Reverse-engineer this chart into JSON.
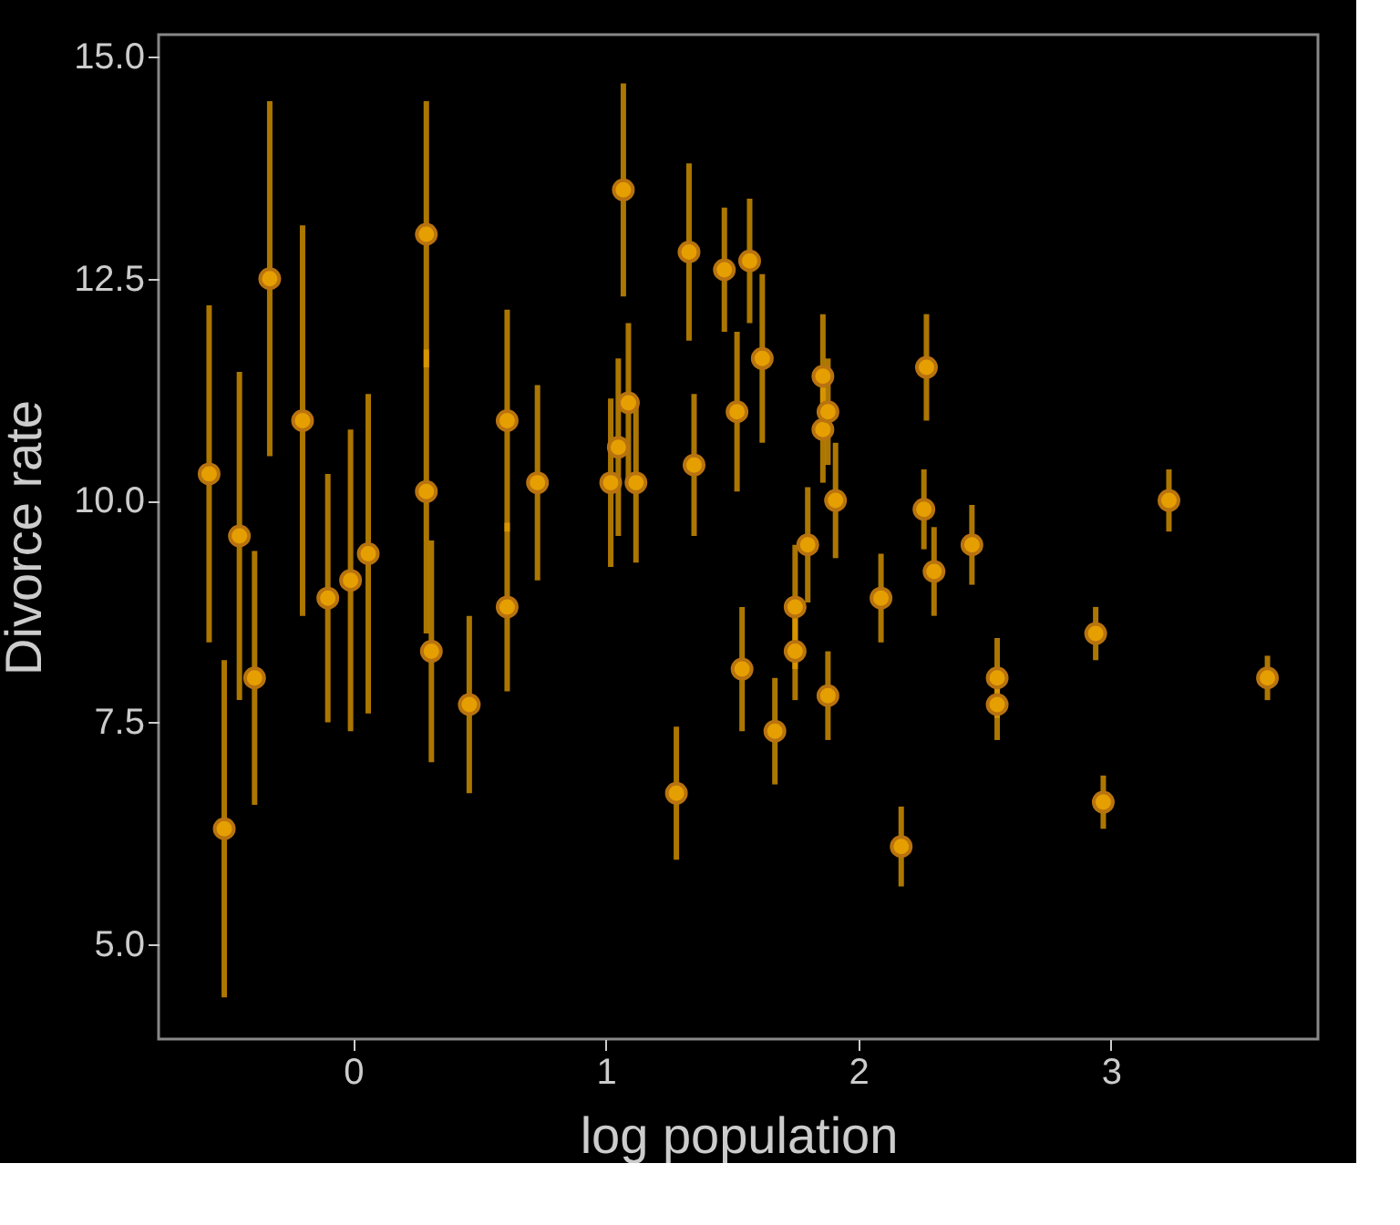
{
  "chart_data": {
    "type": "scatter",
    "xlabel": "log population",
    "ylabel": "Divorce rate",
    "x": [
      -0.57,
      -0.51,
      -0.45,
      -0.39,
      -0.33,
      -0.2,
      -0.1,
      -0.01,
      0.06,
      0.29,
      0.29,
      0.31,
      0.46,
      0.61,
      0.61,
      0.73,
      1.02,
      1.05,
      1.07,
      1.09,
      1.12,
      1.28,
      1.33,
      1.35,
      1.47,
      1.52,
      1.54,
      1.57,
      1.62,
      1.67,
      1.75,
      1.75,
      1.8,
      1.86,
      1.86,
      1.88,
      1.88,
      1.91,
      2.09,
      2.17,
      2.26,
      2.27,
      2.3,
      2.45,
      2.55,
      2.55,
      2.94,
      2.97,
      3.23,
      3.62
    ],
    "series": [
      {
        "color": "#e69f00",
        "values": [
          10.3,
          6.3,
          9.6,
          8.0,
          12.5,
          10.9,
          8.9,
          9.1,
          9.4,
          13.0,
          10.1,
          8.3,
          7.7,
          10.9,
          8.8,
          10.2,
          10.2,
          10.6,
          13.5,
          11.1,
          10.2,
          6.7,
          12.8,
          10.4,
          12.6,
          11.0,
          8.1,
          12.7,
          11.6,
          7.4,
          8.3,
          8.8,
          9.5,
          10.8,
          11.4,
          11.0,
          7.8,
          10.0,
          8.9,
          6.1,
          9.9,
          11.5,
          9.2,
          9.5,
          7.7,
          8.0,
          8.5,
          6.6,
          10.0,
          8.0
        ],
        "errors": [
          1.9,
          1.9,
          1.85,
          1.43,
          2.0,
          2.2,
          1.4,
          1.7,
          1.8,
          1.5,
          1.6,
          1.25,
          1.0,
          1.25,
          0.95,
          1.1,
          0.95,
          1.0,
          1.2,
          0.9,
          0.9,
          0.75,
          1.0,
          0.8,
          0.7,
          0.9,
          0.7,
          0.7,
          0.95,
          0.6,
          0.55,
          0.7,
          0.65,
          0.6,
          0.7,
          0.6,
          0.5,
          0.65,
          0.5,
          0.45,
          0.45,
          0.6,
          0.5,
          0.45,
          0.4,
          0.45,
          0.3,
          0.3,
          0.35,
          0.25
        ]
      }
    ],
    "xlim": [
      -0.77,
      3.82
    ],
    "ylim": [
      3.93,
      15.25
    ],
    "xticks": [
      0,
      1,
      2,
      3
    ],
    "yticks": [
      {
        "value": 5,
        "label": "5.0"
      },
      {
        "value": 7.5,
        "label": "7.5"
      },
      {
        "value": 10,
        "label": "10.0"
      },
      {
        "value": 12.5,
        "label": "12.5"
      },
      {
        "value": 15,
        "label": "15.0"
      }
    ],
    "grid": false,
    "legend": false,
    "marker": "circle"
  }
}
